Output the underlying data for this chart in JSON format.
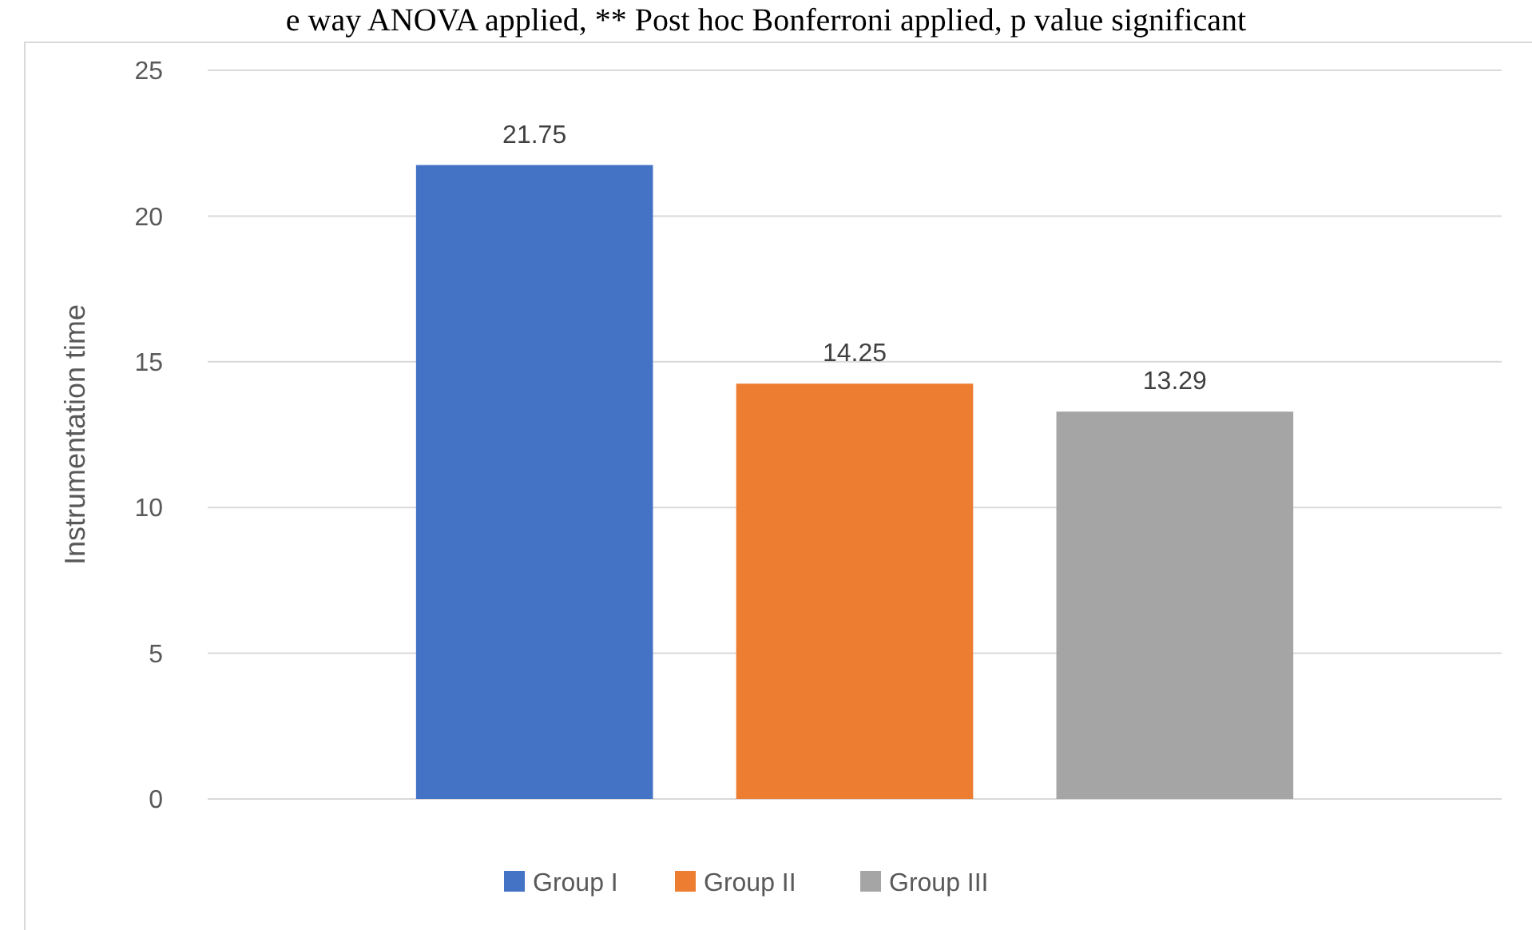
{
  "chart_data": {
    "type": "bar",
    "ylabel": "Instrumentation time",
    "categories": [
      null
    ],
    "series": [
      {
        "name": "Group I",
        "color": "#4472c4",
        "values": [
          21.75
        ]
      },
      {
        "name": "Group II",
        "color": "#ed7d31",
        "values": [
          14.25
        ]
      },
      {
        "name": "Group III",
        "color": "#a5a5a5",
        "values": [
          13.29
        ]
      }
    ],
    "ylim": [
      0,
      25
    ],
    "yticks": [
      0,
      5,
      10,
      15,
      20,
      25
    ],
    "grid": "y",
    "legend": "bottom",
    "data_labels": true,
    "annotations": [
      "e way ANOVA applied, ** Post hoc Bonferroni applied, p value significant"
    ]
  }
}
